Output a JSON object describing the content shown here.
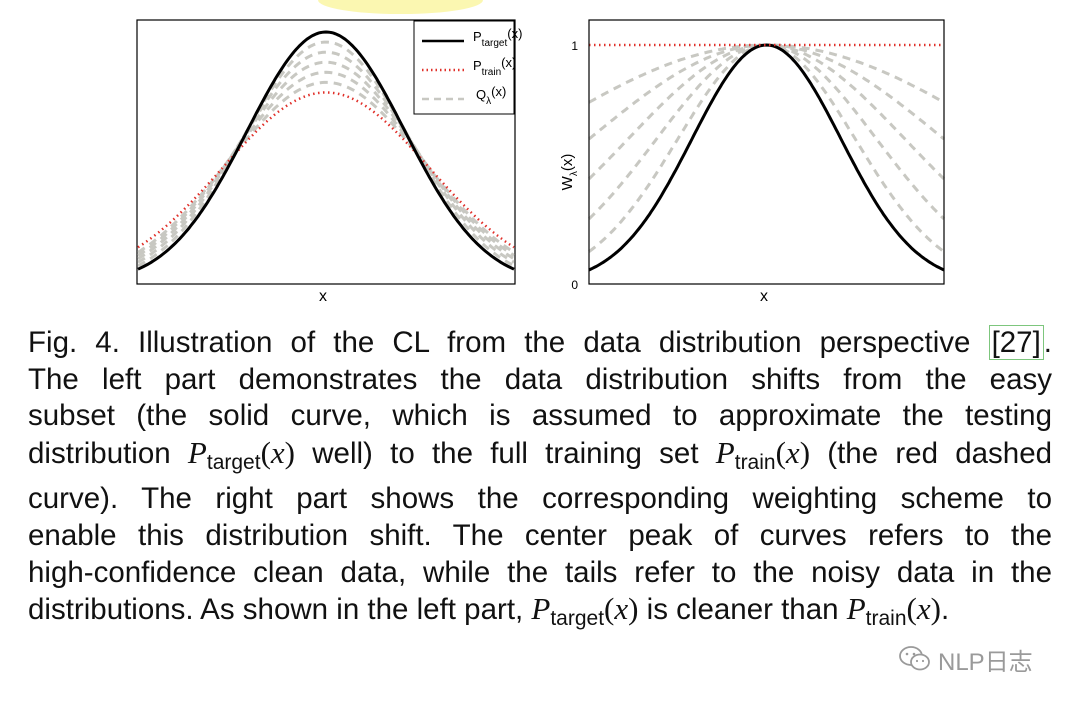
{
  "caption": {
    "lines": [
      [
        "Fig. 4. Illustration of the CL from the data distribution perspective ",
        {
          "ref": "[27]"
        },
        "."
      ],
      [
        "The left part demonstrates the data distribution shifts from the easy"
      ],
      [
        "subset (the solid curve, which is assumed to approximate the testing"
      ],
      [
        "distribution ",
        {
          "math": "P",
          "sub": "target"
        },
        " well) to the full training set ",
        {
          "math": "P",
          "sub": "train"
        },
        " (the red dashed"
      ],
      [
        "curve). The right part shows the corresponding weighting scheme to"
      ],
      [
        "enable this distribution shift. The center peak of curves refers to the"
      ],
      [
        "high-confidence clean data, while the tails refer to the noisy data in the"
      ],
      [
        "distributions. As shown in the left part, ",
        {
          "math": "P",
          "sub": "target"
        },
        " is cleaner than ",
        {
          "math": "P",
          "sub": "train"
        },
        "."
      ]
    ]
  },
  "watermark": {
    "text": "NLP日志",
    "icon": "wechat-icon"
  },
  "chart_data": [
    {
      "type": "line",
      "title": "",
      "xlabel": "x",
      "ylabel": "",
      "x_range": [
        -1,
        1
      ],
      "legend": {
        "placement": "top-right",
        "entries": [
          {
            "base": "P",
            "sub": "target",
            "suffix": "(x)",
            "style": "solid",
            "color": "#000000"
          },
          {
            "base": "P",
            "sub": "train",
            "suffix": "(x)",
            "style": "dotted",
            "color": "#e0302a"
          },
          {
            "base": "Q",
            "sub": "λ",
            "suffix": "(x)",
            "style": "dashed",
            "color": "#c8c8c2"
          }
        ]
      },
      "series": [
        {
          "role": "target",
          "peak": 1.0,
          "width": 0.42
        },
        {
          "role": "train",
          "peak": 0.76,
          "width": 0.55
        },
        {
          "role": "q",
          "peak": 0.96,
          "width": 0.44
        },
        {
          "role": "q",
          "peak": 0.92,
          "width": 0.46
        },
        {
          "role": "q",
          "peak": 0.88,
          "width": 0.48
        },
        {
          "role": "q",
          "peak": 0.84,
          "width": 0.5
        },
        {
          "role": "q",
          "peak": 0.8,
          "width": 0.52
        }
      ]
    },
    {
      "type": "line",
      "title": "",
      "xlabel": "x",
      "ylabel_base": "W",
      "ylabel_sub": "λ",
      "ylabel_suffix": "(x)",
      "ylim": [
        0,
        1
      ],
      "yticks": [
        "0",
        "1"
      ],
      "x_range": [
        -1,
        1
      ],
      "series": [
        {
          "role": "train-weight",
          "value": 1.0,
          "color": "#e0302a",
          "style": "dotted"
        },
        {
          "role": "target-weight",
          "width": 0.42,
          "color": "#000000",
          "style": "solid"
        },
        {
          "role": "q-weight",
          "width": 0.5
        },
        {
          "role": "q-weight",
          "width": 0.62
        },
        {
          "role": "q-weight",
          "width": 0.78
        },
        {
          "role": "q-weight",
          "width": 1.0
        },
        {
          "role": "q-weight",
          "width": 1.35
        }
      ]
    }
  ]
}
